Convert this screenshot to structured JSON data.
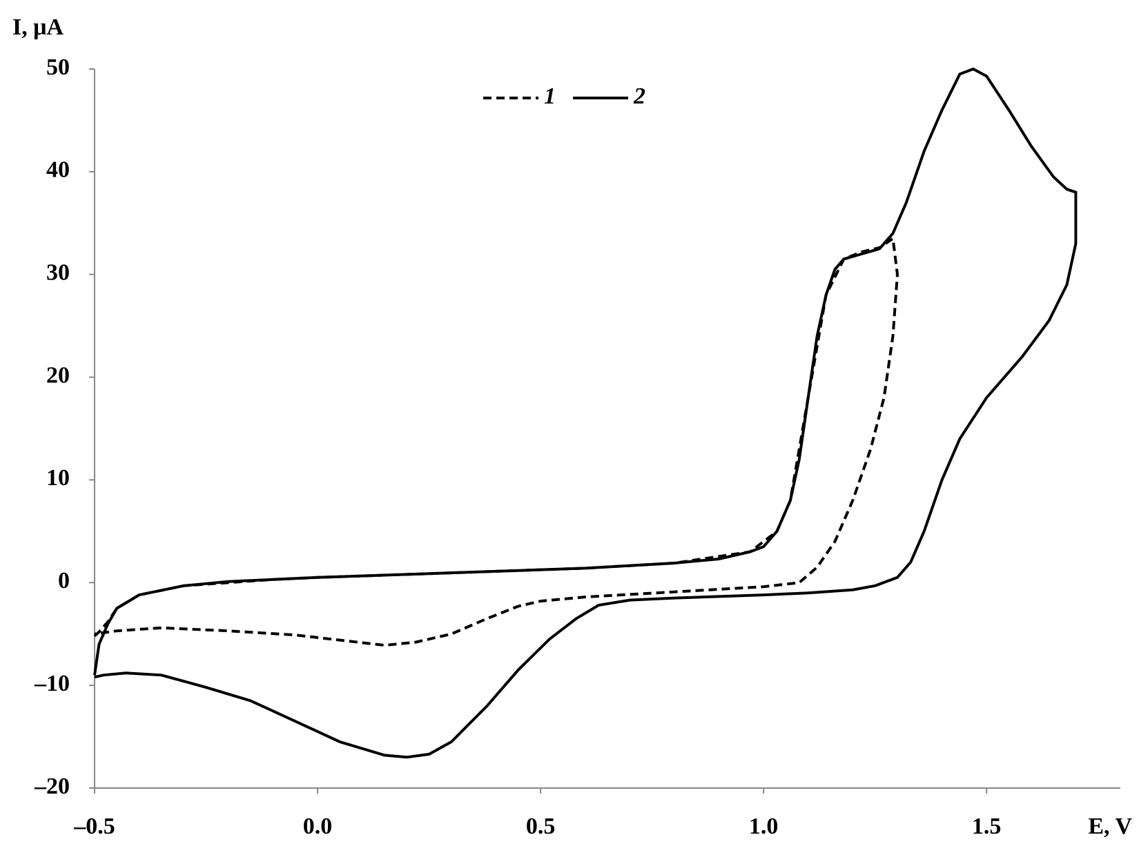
{
  "chart_data": {
    "type": "line",
    "x_label": "E, V",
    "y_label": "I, μA",
    "xlim": [
      -0.5,
      1.8
    ],
    "ylim": [
      -20,
      50
    ],
    "xticks": [
      {
        "value": -0.5,
        "label": "–0.5"
      },
      {
        "value": 0,
        "label": "0.0"
      },
      0.5,
      {
        "value": 1,
        "label": "1.0"
      },
      1.5
    ],
    "yticks": [
      {
        "value": -20,
        "label": "–20"
      },
      {
        "value": -10,
        "label": "–10"
      },
      0,
      10,
      20,
      30,
      40,
      50
    ],
    "legend": "top",
    "series": [
      {
        "name": "1",
        "color": "#000000",
        "dash": true,
        "x": [
          -0.5,
          -0.49,
          -0.47,
          -0.45,
          -0.4,
          -0.3,
          -0.1,
          0,
          0.2,
          0.4,
          0.6,
          0.8,
          0.97,
          1.03,
          1.06,
          1.1,
          1.14,
          1.18,
          1.22,
          1.26,
          1.29,
          1.3,
          1.29,
          1.27,
          1.24,
          1.2,
          1.16,
          1.12,
          1.08,
          1.0,
          0.8,
          0.6,
          0.5,
          0.45,
          0.38,
          0.3,
          0.22,
          0.15,
          0.05,
          -0.05,
          -0.2,
          -0.35,
          -0.45,
          -0.5
        ],
        "values": [
          -5.2,
          -4.8,
          -3.8,
          -2.5,
          -1.2,
          -0.3,
          0.3,
          0.5,
          0.8,
          1.1,
          1.4,
          1.9,
          3,
          5,
          8,
          18,
          28,
          31.5,
          32.2,
          32.6,
          33.5,
          30,
          24,
          18,
          13,
          8,
          4,
          1.5,
          0,
          -0.4,
          -0.9,
          -1.4,
          -1.8,
          -2.3,
          -3.5,
          -5,
          -5.8,
          -6.1,
          -5.6,
          -5.1,
          -4.7,
          -4.4,
          -4.7,
          -5
        ]
      },
      {
        "name": "2",
        "color": "#000000",
        "dash": false,
        "x": [
          -0.5,
          -0.49,
          -0.47,
          -0.45,
          -0.4,
          -0.3,
          -0.2,
          -0.1,
          0,
          0.2,
          0.4,
          0.6,
          0.8,
          0.9,
          0.97,
          1.0,
          1.03,
          1.06,
          1.08,
          1.1,
          1.12,
          1.14,
          1.16,
          1.18,
          1.22,
          1.26,
          1.29,
          1.32,
          1.36,
          1.4,
          1.44,
          1.47,
          1.5,
          1.55,
          1.6,
          1.65,
          1.68,
          1.7,
          1.7,
          1.68,
          1.64,
          1.58,
          1.5,
          1.44,
          1.4,
          1.36,
          1.33,
          1.3,
          1.25,
          1.2,
          1.1,
          1.0,
          0.8,
          0.7,
          0.63,
          0.58,
          0.52,
          0.45,
          0.38,
          0.3,
          0.25,
          0.2,
          0.15,
          0.05,
          -0.05,
          -0.15,
          -0.25,
          -0.35,
          -0.43,
          -0.48,
          -0.5
        ],
        "values": [
          -9,
          -6,
          -4,
          -2.5,
          -1.2,
          -0.3,
          0.1,
          0.3,
          0.5,
          0.8,
          1.1,
          1.4,
          1.9,
          2.3,
          3,
          3.5,
          5,
          8,
          12,
          18,
          24,
          28,
          30.5,
          31.5,
          32,
          32.5,
          34,
          37,
          42,
          46,
          49.5,
          50,
          49.3,
          46,
          42.5,
          39.5,
          38.3,
          38,
          33,
          29,
          25.5,
          22,
          18,
          14,
          10,
          5,
          2,
          0.5,
          -0.3,
          -0.7,
          -1,
          -1.2,
          -1.5,
          -1.7,
          -2.2,
          -3.5,
          -5.5,
          -8.5,
          -12,
          -15.5,
          -16.7,
          -17,
          -16.8,
          -15.5,
          -13.5,
          -11.5,
          -10.2,
          -9,
          -8.8,
          -9,
          -9.2
        ]
      }
    ]
  }
}
